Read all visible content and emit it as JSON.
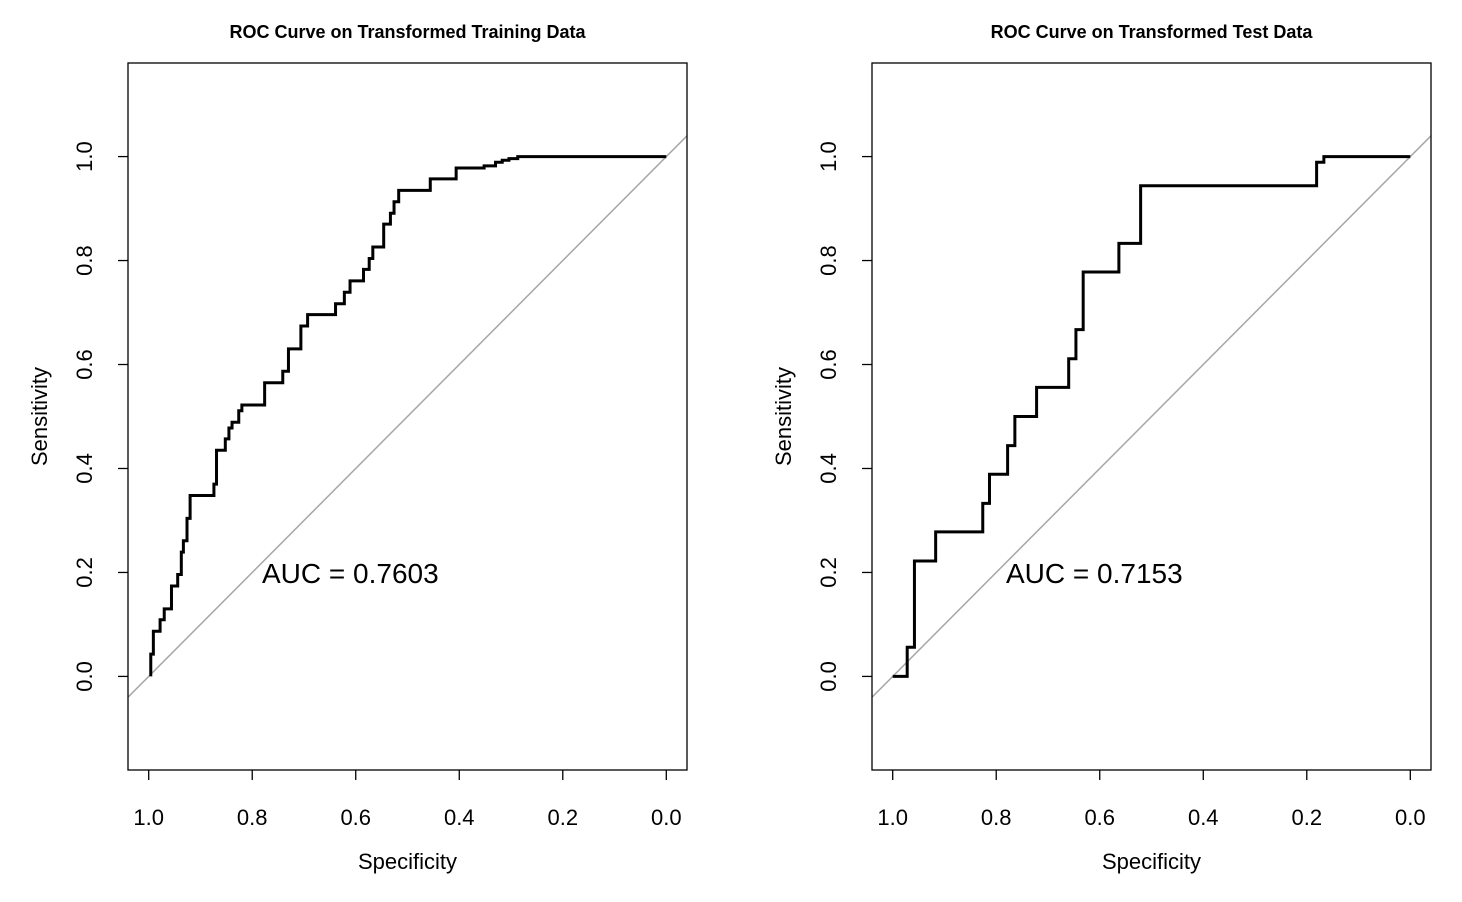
{
  "chart_data": [
    {
      "type": "line",
      "title": "ROC Curve on Transformed Training Data",
      "xlabel": "Specificity",
      "ylabel": "Sensitivity",
      "x_reversed": true,
      "xlim": [
        1.04,
        -0.04
      ],
      "ylim": [
        -0.18,
        1.18
      ],
      "xticks": [
        "1.0",
        "0.8",
        "0.6",
        "0.4",
        "0.2",
        "0.0"
      ],
      "yticks": [
        "0.0",
        "0.2",
        "0.4",
        "0.6",
        "0.8",
        "1.0"
      ],
      "annotation": "AUC = 0.7603",
      "annotation_at": [
        0.78,
        0.2
      ],
      "reference_line": "y = 1 - x",
      "colors": {
        "curve": "#000000",
        "reference": "#a6a6a6"
      },
      "series": [
        {
          "specificity": [
            0.996,
            0.996,
            0.991,
            0.991,
            0.978,
            0.978,
            0.97,
            0.97,
            0.956,
            0.956,
            0.944,
            0.944,
            0.937,
            0.937,
            0.933,
            0.933,
            0.926,
            0.926,
            0.92,
            0.92,
            0.874,
            0.874,
            0.869,
            0.869,
            0.852,
            0.852,
            0.845,
            0.845,
            0.839,
            0.839,
            0.826,
            0.826,
            0.82,
            0.82,
            0.817,
            0.817,
            0.776,
            0.776,
            0.741,
            0.741,
            0.73,
            0.73,
            0.706,
            0.706,
            0.693,
            0.693,
            0.639,
            0.639,
            0.622,
            0.622,
            0.611,
            0.611,
            0.585,
            0.585,
            0.574,
            0.574,
            0.567,
            0.567,
            0.546,
            0.546,
            0.533,
            0.533,
            0.526,
            0.526,
            0.517,
            0.517,
            0.456,
            0.456,
            0.406,
            0.406,
            0.352,
            0.352,
            0.33,
            0.33,
            0.317,
            0.317,
            0.304,
            0.304,
            0.287,
            0.287,
            0.0
          ],
          "sensitivity": [
            0.0,
            0.043,
            0.043,
            0.087,
            0.087,
            0.109,
            0.109,
            0.13,
            0.13,
            0.174,
            0.174,
            0.196,
            0.196,
            0.239,
            0.239,
            0.261,
            0.261,
            0.304,
            0.304,
            0.348,
            0.348,
            0.37,
            0.37,
            0.435,
            0.435,
            0.457,
            0.457,
            0.478,
            0.478,
            0.489,
            0.489,
            0.511,
            0.511,
            0.522,
            0.522,
            0.522,
            0.522,
            0.565,
            0.565,
            0.587,
            0.587,
            0.63,
            0.63,
            0.674,
            0.674,
            0.696,
            0.696,
            0.717,
            0.717,
            0.739,
            0.739,
            0.761,
            0.761,
            0.783,
            0.783,
            0.804,
            0.804,
            0.826,
            0.826,
            0.87,
            0.87,
            0.891,
            0.891,
            0.913,
            0.913,
            0.935,
            0.935,
            0.957,
            0.957,
            0.978,
            0.978,
            0.982,
            0.982,
            0.989,
            0.989,
            0.993,
            0.993,
            0.996,
            0.996,
            1.0,
            1.0
          ]
        }
      ]
    },
    {
      "type": "line",
      "title": "ROC Curve on Transformed Test Data",
      "xlabel": "Specificity",
      "ylabel": "Sensitivity",
      "x_reversed": true,
      "xlim": [
        1.04,
        -0.04
      ],
      "ylim": [
        -0.18,
        1.18
      ],
      "xticks": [
        "1.0",
        "0.8",
        "0.6",
        "0.4",
        "0.2",
        "0.0"
      ],
      "yticks": [
        "0.0",
        "0.2",
        "0.4",
        "0.6",
        "0.8",
        "1.0"
      ],
      "annotation": "AUC = 0.7153",
      "annotation_at": [
        0.78,
        0.2
      ],
      "reference_line": "y = 1 - x",
      "colors": {
        "curve": "#000000",
        "reference": "#a6a6a6"
      },
      "series": [
        {
          "specificity": [
            1.0,
            0.972,
            0.972,
            0.958,
            0.958,
            0.917,
            0.917,
            0.826,
            0.826,
            0.813,
            0.813,
            0.778,
            0.778,
            0.764,
            0.764,
            0.722,
            0.722,
            0.66,
            0.66,
            0.646,
            0.646,
            0.632,
            0.632,
            0.563,
            0.563,
            0.521,
            0.521,
            0.181,
            0.181,
            0.167,
            0.167,
            0.0
          ],
          "sensitivity": [
            0.0,
            0.0,
            0.056,
            0.056,
            0.222,
            0.222,
            0.278,
            0.278,
            0.333,
            0.333,
            0.389,
            0.389,
            0.444,
            0.444,
            0.5,
            0.5,
            0.556,
            0.556,
            0.611,
            0.611,
            0.667,
            0.667,
            0.778,
            0.778,
            0.833,
            0.833,
            0.944,
            0.944,
            0.989,
            0.989,
            1.0,
            1.0
          ]
        }
      ]
    }
  ]
}
